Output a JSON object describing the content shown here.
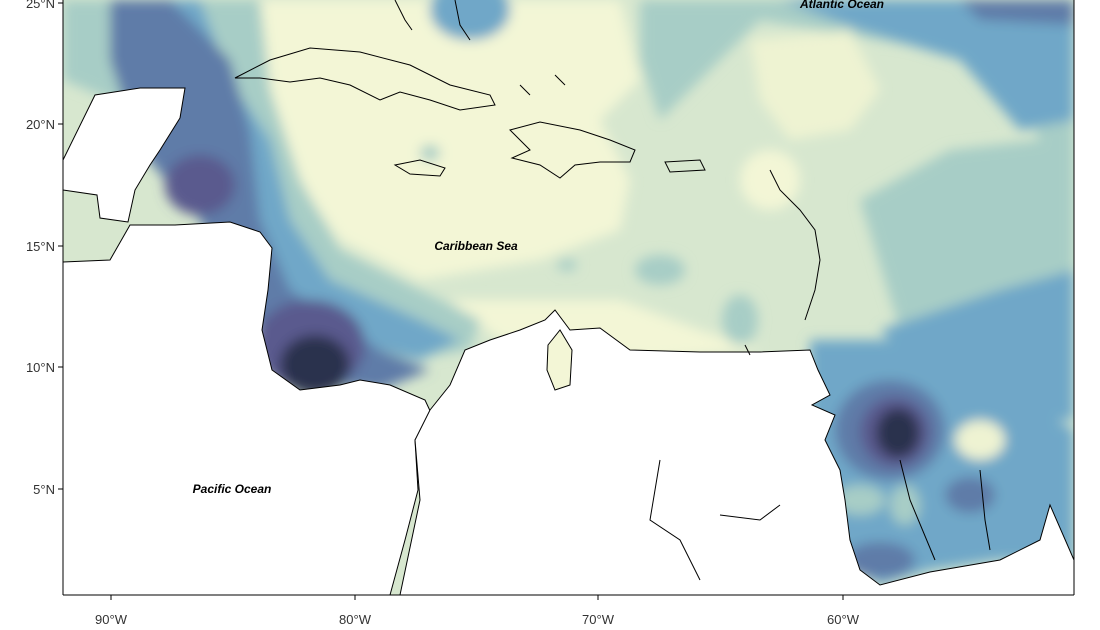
{
  "map": {
    "y_axis_labels": [
      "25°N",
      "20°N",
      "15°N",
      "10°N",
      "5°N"
    ],
    "x_axis_labels": [
      "90°W",
      "80°W",
      "70°W",
      "60°W"
    ],
    "places": [
      {
        "label": "Atlantic Ocean"
      },
      {
        "label": "Caribbean Sea"
      },
      {
        "label": "Pacific Ocean"
      }
    ]
  }
}
